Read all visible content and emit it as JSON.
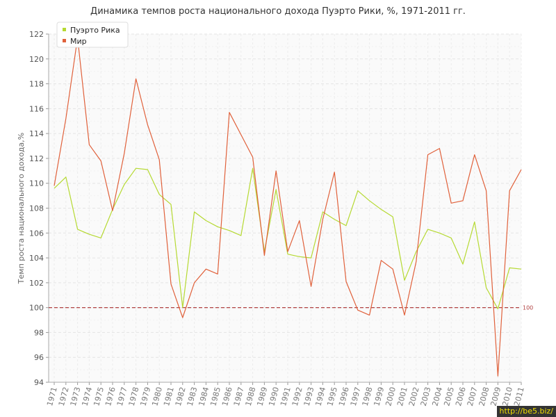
{
  "chart_data": {
    "type": "line",
    "title": "Динамика темпов роста национального дохода Пуэрто Рики, %, 1971-2011 гг.",
    "ylabel": "Темп роста национального дохода,%",
    "xlabel": "",
    "ylim": [
      94,
      122
    ],
    "yticks": [
      94,
      96,
      98,
      100,
      102,
      104,
      106,
      108,
      110,
      112,
      114,
      116,
      118,
      120,
      122
    ],
    "grid": true,
    "legend_position": "top-left",
    "x": [
      "1971",
      "1972",
      "1973",
      "1974",
      "1975",
      "1976",
      "1977",
      "1978",
      "1979",
      "1980",
      "1981",
      "1982",
      "1983",
      "1984",
      "1985",
      "1986",
      "1987",
      "1988",
      "1989",
      "1990",
      "1991",
      "1992",
      "1993",
      "1994",
      "1995",
      "1996",
      "1997",
      "1998",
      "1999",
      "2000",
      "2001",
      "2002",
      "2003",
      "2004",
      "2005",
      "2006",
      "2007",
      "2008",
      "2009",
      "2010",
      "2011"
    ],
    "series": [
      {
        "name": "Пуэрто Рика",
        "color": "#b5d931",
        "values": [
          109.6,
          110.5,
          106.3,
          105.9,
          105.6,
          107.9,
          109.9,
          111.2,
          111.1,
          109.1,
          108.3,
          100.0,
          107.7,
          107.0,
          106.5,
          106.2,
          105.8,
          111.2,
          104.5,
          109.5,
          104.3,
          104.1,
          104.0,
          107.7,
          107.1,
          106.6,
          109.4,
          108.6,
          107.9,
          107.3,
          102.2,
          104.5,
          106.3,
          106.0,
          105.6,
          103.5,
          106.9,
          101.6,
          99.9,
          103.2,
          103.1
        ]
      },
      {
        "name": "Мир",
        "color": "#e0603a",
        "values": [
          109.8,
          115.2,
          121.7,
          113.1,
          111.8,
          107.8,
          112.4,
          118.4,
          114.7,
          111.9,
          101.9,
          99.2,
          102.0,
          103.1,
          102.7,
          115.7,
          113.9,
          112.1,
          104.2,
          111.0,
          104.5,
          107.0,
          101.7,
          107.1,
          110.9,
          102.1,
          99.8,
          99.4,
          103.8,
          103.1,
          99.4,
          103.7,
          112.3,
          112.8,
          108.4,
          108.6,
          112.3,
          109.4,
          94.5,
          109.4,
          111.1
        ]
      }
    ],
    "reference_line": {
      "value": 100,
      "label": "100",
      "color": "#b04040"
    }
  },
  "watermark": "http://be5.biz/"
}
